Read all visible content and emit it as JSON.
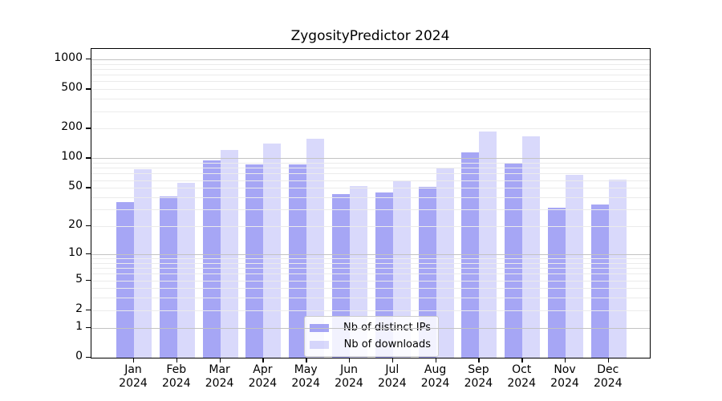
{
  "title": "ZygosityPredictor 2024",
  "colors": {
    "bar_base": "102,102,238",
    "dark_alpha": 0.58,
    "light_alpha": 0.25,
    "major_grid": "#c3c3c3",
    "minor_grid": "#ebebeb",
    "axis": "#000000"
  },
  "legend": {
    "items": [
      {
        "label": "Nb of distinct IPs",
        "swatch": "dark"
      },
      {
        "label": "Nb of downloads",
        "swatch": "light"
      }
    ]
  },
  "chart_data": {
    "type": "bar",
    "title": "ZygosityPredictor 2024",
    "categories": [
      "Jan 2024",
      "Feb 2024",
      "Mar 2024",
      "Apr 2024",
      "May 2024",
      "Jun 2024",
      "Jul 2024",
      "Aug 2024",
      "Sep 2024",
      "Oct 2024",
      "Nov 2024",
      "Dec 2024"
    ],
    "series": [
      {
        "name": "Nb of distinct IPs",
        "values": [
          36,
          41,
          95,
          87,
          87,
          43,
          45,
          51,
          115,
          90,
          31,
          34
        ]
      },
      {
        "name": "Nb of downloads",
        "values": [
          78,
          56,
          122,
          142,
          159,
          52,
          58,
          80,
          188,
          168,
          68,
          61
        ]
      }
    ],
    "xlabel": "",
    "ylabel": "",
    "yscale": "log10(1+v)",
    "yticks": [
      0,
      1,
      2,
      5,
      10,
      20,
      50,
      100,
      200,
      500,
      1000
    ],
    "ylim": [
      0,
      1286
    ],
    "grid": true,
    "legend_position": "lower center"
  }
}
